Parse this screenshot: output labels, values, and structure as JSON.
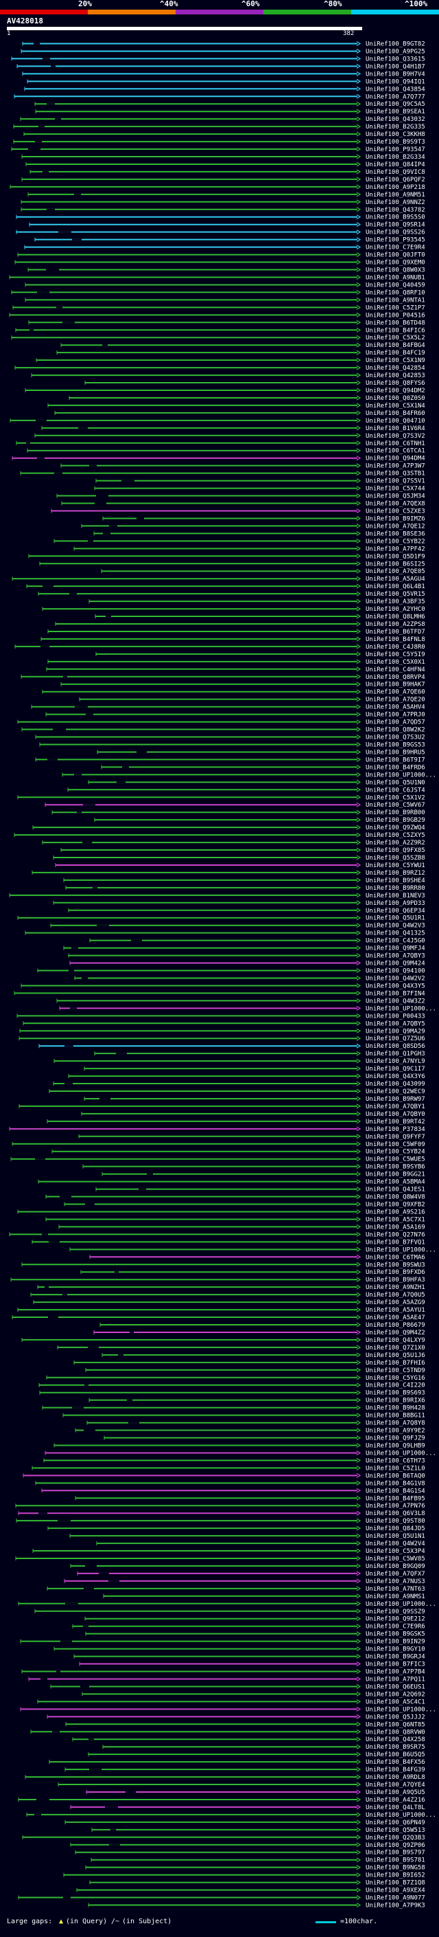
{
  "header": {
    "query_id": "AV428018",
    "query_range_start": "1",
    "query_range_end": "382",
    "scale_labels": [
      "20%",
      "^40%",
      "^60%",
      "^80%",
      "^100%"
    ],
    "scale_colors": [
      "#dd0000",
      "#ee7700",
      "#9922bb",
      "#22aa22",
      "#00ccee"
    ]
  },
  "colors": {
    "cyan": "#33ccee",
    "green": "#33bb33",
    "magenta": "#cc44cc",
    "gap": "#9999aa",
    "label": "#ffffff",
    "ruler": "#ffffff"
  },
  "hits": [
    {
      "label": "UniRef100_B9GT82",
      "c": "cyan"
    },
    {
      "label": "UniRef100_A9PG25",
      "c": "cyan"
    },
    {
      "label": "UniRef100_Q33615",
      "c": "cyan"
    },
    {
      "label": "UniRef100_Q4H1B7",
      "c": "cyan"
    },
    {
      "label": "UniRef100_B9H7V4",
      "c": "cyan"
    },
    {
      "label": "UniRef100_Q94IQ1",
      "c": "cyan"
    },
    {
      "label": "UniRef100_Q43854",
      "c": "cyan"
    },
    {
      "label": "UniRef100_A7Q777",
      "c": "cyan"
    },
    {
      "label": "UniRef100_Q9C5A5",
      "c": "green"
    },
    {
      "label": "UniRef100_B9SEA1",
      "c": "green"
    },
    {
      "label": "UniRef100_Q43032",
      "c": "green"
    },
    {
      "label": "UniRef100_B2G335",
      "c": "green"
    },
    {
      "label": "UniRef100_C3KKH8",
      "c": "green"
    },
    {
      "label": "UniRef100_B9S9T3",
      "c": "green"
    },
    {
      "label": "UniRef100_P93547",
      "c": "green"
    },
    {
      "label": "UniRef100_B2G334",
      "c": "green"
    },
    {
      "label": "UniRef100_Q84IP4",
      "c": "green"
    },
    {
      "label": "UniRef100_Q9VIC8",
      "c": "green"
    },
    {
      "label": "UniRef100_Q6PQF2",
      "c": "green"
    },
    {
      "label": "UniRef100_A9P218",
      "c": "green"
    },
    {
      "label": "UniRef100_A9NM51",
      "c": "green"
    },
    {
      "label": "UniRef100_A9NNZ2",
      "c": "green"
    },
    {
      "label": "UniRef100_Q43782",
      "c": "green"
    },
    {
      "label": "UniRef100_B9S5S0",
      "c": "cyan"
    },
    {
      "label": "UniRef100_Q9SR14",
      "c": "cyan"
    },
    {
      "label": "UniRef100_Q9SS26",
      "c": "cyan"
    },
    {
      "label": "UniRef100_P93545",
      "c": "cyan"
    },
    {
      "label": "UniRef100_C7E9R4",
      "c": "cyan"
    },
    {
      "label": "UniRef100_Q0JFT0",
      "c": "green"
    },
    {
      "label": "UniRef100_Q9XEM0",
      "c": "green"
    },
    {
      "label": "UniRef100_Q8W0X3",
      "c": "green"
    },
    {
      "label": "UniRef100_A9NUB1",
      "c": "green"
    },
    {
      "label": "UniRef100_Q40459",
      "c": "green"
    },
    {
      "label": "UniRef100_Q8RF10",
      "c": "green"
    },
    {
      "label": "UniRef100_A9NTA1",
      "c": "green"
    },
    {
      "label": "UniRef100_C5Z1P7",
      "c": "green"
    },
    {
      "label": "UniRef100_P04516",
      "c": "green"
    },
    {
      "label": "UniRef100_B6TD48",
      "c": "green"
    },
    {
      "label": "UniRef100_B4FIC6",
      "c": "green"
    },
    {
      "label": "UniRef100_C5X5L2",
      "c": "green"
    },
    {
      "label": "UniRef100_B4FBG4",
      "c": "green"
    },
    {
      "label": "UniRef100_B4FC19",
      "c": "green"
    },
    {
      "label": "UniRef100_C5X1N9",
      "c": "green"
    },
    {
      "label": "UniRef100_Q42854",
      "c": "green"
    },
    {
      "label": "UniRef100_Q42853",
      "c": "green"
    },
    {
      "label": "UniRef100_Q8FYS6",
      "c": "green"
    },
    {
      "label": "UniRef100_Q94DM2",
      "c": "green"
    },
    {
      "label": "UniRef100_Q0Z0S0",
      "c": "green"
    },
    {
      "label": "UniRef100_C5X1N4",
      "c": "green"
    },
    {
      "label": "UniRef100_B4FR60",
      "c": "green"
    },
    {
      "label": "UniRef100_Q04710",
      "c": "green"
    },
    {
      "label": "UniRef100_B1V6R4",
      "c": "green"
    },
    {
      "label": "UniRef100_Q7S3V2",
      "c": "green"
    },
    {
      "label": "UniRef100_C6TNH1",
      "c": "green"
    },
    {
      "label": "UniRef100_C6TCA1",
      "c": "green"
    },
    {
      "label": "UniRef100_Q94DM4",
      "c": "magenta"
    },
    {
      "label": "UniRef100_A7P3W7",
      "c": "green"
    },
    {
      "label": "UniRef100_Q3STB1",
      "c": "green"
    },
    {
      "label": "UniRef100_Q7S5V1",
      "c": "green"
    },
    {
      "label": "UniRef100_C5X744",
      "c": "green"
    },
    {
      "label": "UniRef100_Q5JM34",
      "c": "green"
    },
    {
      "label": "UniRef100_A7QEX8",
      "c": "green"
    },
    {
      "label": "UniRef100_C5ZXE3",
      "c": "magenta"
    },
    {
      "label": "UniRef100_B9IMZ6",
      "c": "green"
    },
    {
      "label": "UniRef100_A7QE12",
      "c": "green"
    },
    {
      "label": "UniRef100_B8SE36",
      "c": "green"
    },
    {
      "label": "UniRef100_C5YB22",
      "c": "green"
    },
    {
      "label": "UniRef100_A7PF42",
      "c": "green"
    },
    {
      "label": "UniRef100_Q5D1F9",
      "c": "green"
    },
    {
      "label": "UniRef100_B6SI25",
      "c": "green"
    },
    {
      "label": "UniRef100_A7QE05",
      "c": "green"
    },
    {
      "label": "UniRef100_A5AGU4",
      "c": "green"
    },
    {
      "label": "UniRef100_Q6L4B1",
      "c": "green"
    },
    {
      "label": "UniRef100_Q5VR15",
      "c": "green"
    },
    {
      "label": "UniRef100_A3BF35",
      "c": "green"
    },
    {
      "label": "UniRef100_A2YHC0",
      "c": "green"
    },
    {
      "label": "UniRef100_Q8LMH6",
      "c": "green"
    },
    {
      "label": "UniRef100_A2ZPS8",
      "c": "green"
    },
    {
      "label": "UniRef100_B6TFD7",
      "c": "green"
    },
    {
      "label": "UniRef100_B4FNL8",
      "c": "green"
    },
    {
      "label": "UniRef100_C4J8R0",
      "c": "green"
    },
    {
      "label": "UniRef100_C5Y5I9",
      "c": "green"
    },
    {
      "label": "UniRef100_C5X0X1",
      "c": "green"
    },
    {
      "label": "UniRef100_C4HFN4",
      "c": "green"
    },
    {
      "label": "UniRef100_Q8RVP4",
      "c": "green"
    },
    {
      "label": "UniRef100_B9HAK7",
      "c": "green"
    },
    {
      "label": "UniRef100_A7QE60",
      "c": "green"
    },
    {
      "label": "UniRef100_A7QE20",
      "c": "green"
    },
    {
      "label": "UniRef100_A5AHV4",
      "c": "green"
    },
    {
      "label": "UniRef100_A7PRJ0",
      "c": "green"
    },
    {
      "label": "UniRef100_A7QD57",
      "c": "green"
    },
    {
      "label": "UniRef100_Q8W2K2",
      "c": "green"
    },
    {
      "label": "UniRef100_Q7S3U2",
      "c": "green"
    },
    {
      "label": "UniRef100_B9GS53",
      "c": "green"
    },
    {
      "label": "UniRef100_B9HRU5",
      "c": "green"
    },
    {
      "label": "UniRef100_B6T9I7",
      "c": "green"
    },
    {
      "label": "UniRef100_B4FRD6",
      "c": "green"
    },
    {
      "label": "UniRef100_UP1000...",
      "c": "green"
    },
    {
      "label": "UniRef100_Q5U1N0",
      "c": "green"
    },
    {
      "label": "UniRef100_C6JST4",
      "c": "green"
    },
    {
      "label": "UniRef100_C5X1V2",
      "c": "green"
    },
    {
      "label": "UniRef100_C5WV67",
      "c": "magenta"
    },
    {
      "label": "UniRef100_B9RB00",
      "c": "green"
    },
    {
      "label": "UniRef100_B9GB29",
      "c": "green"
    },
    {
      "label": "UniRef100_Q9ZWQ4",
      "c": "green"
    },
    {
      "label": "UniRef100_C5ZXY5",
      "c": "green"
    },
    {
      "label": "UniRef100_A2Z9R2",
      "c": "green"
    },
    {
      "label": "UniRef100_Q9FX85",
      "c": "green"
    },
    {
      "label": "UniRef100_Q5SZB8",
      "c": "green"
    },
    {
      "label": "UniRef100_C5YWU1",
      "c": "magenta"
    },
    {
      "label": "UniRef100_B9RZ12",
      "c": "green"
    },
    {
      "label": "UniRef100_B9SHE4",
      "c": "green"
    },
    {
      "label": "UniRef100_B9RR80",
      "c": "green"
    },
    {
      "label": "UniRef100_B1NEV3",
      "c": "green"
    },
    {
      "label": "UniRef100_A9PD33",
      "c": "green"
    },
    {
      "label": "UniRef100_Q6EP34",
      "c": "green"
    },
    {
      "label": "UniRef100_Q5U1R1",
      "c": "green"
    },
    {
      "label": "UniRef100_Q4W2V3",
      "c": "green"
    },
    {
      "label": "UniRef100_Q41325",
      "c": "green"
    },
    {
      "label": "UniRef100_C4J5G0",
      "c": "green"
    },
    {
      "label": "UniRef100_Q9MFJ4",
      "c": "green"
    },
    {
      "label": "UniRef100_A7QBY3",
      "c": "green"
    },
    {
      "label": "UniRef100_Q9M424",
      "c": "magenta"
    },
    {
      "label": "UniRef100_Q94100",
      "c": "green"
    },
    {
      "label": "UniRef100_Q4W2V2",
      "c": "green"
    },
    {
      "label": "UniRef100_Q4X3Y5",
      "c": "green"
    },
    {
      "label": "UniRef100_B7FIN4",
      "c": "green"
    },
    {
      "label": "UniRef100_Q4W3Z2",
      "c": "green"
    },
    {
      "label": "UniRef100_UP1000...",
      "c": "magenta"
    },
    {
      "label": "UniRef100_P00433",
      "c": "green"
    },
    {
      "label": "UniRef100_A7QBY5",
      "c": "green"
    },
    {
      "label": "UniRef100_Q9MA29",
      "c": "green"
    },
    {
      "label": "UniRef100_Q7Z5U6",
      "c": "green"
    },
    {
      "label": "UniRef100_Q8SD56",
      "c": "cyan"
    },
    {
      "label": "UniRef100_Q1PGH3",
      "c": "green"
    },
    {
      "label": "UniRef100_A7NYL9",
      "c": "green"
    },
    {
      "label": "UniRef100_Q9C1I7",
      "c": "green"
    },
    {
      "label": "UniRef100_Q4X3Y6",
      "c": "green"
    },
    {
      "label": "UniRef100_Q43099",
      "c": "green"
    },
    {
      "label": "UniRef100_Q2WEC9",
      "c": "green"
    },
    {
      "label": "UniRef100_B9RW97",
      "c": "green"
    },
    {
      "label": "UniRef100_A7QBY1",
      "c": "green"
    },
    {
      "label": "UniRef100_A7QBY0",
      "c": "green"
    },
    {
      "label": "UniRef100_B9RT42",
      "c": "green"
    },
    {
      "label": "UniRef100_P37834",
      "c": "magenta"
    },
    {
      "label": "UniRef100_Q9FYF7",
      "c": "green"
    },
    {
      "label": "UniRef100_C5WF09",
      "c": "green"
    },
    {
      "label": "UniRef100_C5YB24",
      "c": "green"
    },
    {
      "label": "UniRef100_C5WUE5",
      "c": "green"
    },
    {
      "label": "UniRef100_B9SYB6",
      "c": "green"
    },
    {
      "label": "UniRef100_B9GG21",
      "c": "green"
    },
    {
      "label": "UniRef100_A5BMA4",
      "c": "green"
    },
    {
      "label": "UniRef100_Q4JES1",
      "c": "green"
    },
    {
      "label": "UniRef100_Q8W4V8",
      "c": "green"
    },
    {
      "label": "UniRef100_Q9XFB2",
      "c": "green"
    },
    {
      "label": "UniRef100_A9S216",
      "c": "green"
    },
    {
      "label": "UniRef100_A5C7X1",
      "c": "green"
    },
    {
      "label": "UniRef100_A5A169",
      "c": "green"
    },
    {
      "label": "UniRef100_Q27N76",
      "c": "green"
    },
    {
      "label": "UniRef100_B7FVQ1",
      "c": "green"
    },
    {
      "label": "UniRef100_UP1000...",
      "c": "green"
    },
    {
      "label": "UniRef100_C6TMA6",
      "c": "magenta"
    },
    {
      "label": "UniRef100_B9SWU3",
      "c": "green"
    },
    {
      "label": "UniRef100_B9FXD6",
      "c": "green"
    },
    {
      "label": "UniRef100_B9HFA3",
      "c": "green"
    },
    {
      "label": "UniRef100_A9NZH1",
      "c": "green"
    },
    {
      "label": "UniRef100_A7Q0U5",
      "c": "green"
    },
    {
      "label": "UniRef100_A5AZG9",
      "c": "green"
    },
    {
      "label": "UniRef100_A5AYU1",
      "c": "green"
    },
    {
      "label": "UniRef100_A5AE47",
      "c": "green"
    },
    {
      "label": "UniRef100_P86679",
      "c": "green"
    },
    {
      "label": "UniRef100_Q9M4Z2",
      "c": "magenta"
    },
    {
      "label": "UniRef100_Q4LXY9",
      "c": "green"
    },
    {
      "label": "UniRef100_Q7Z1X0",
      "c": "green"
    },
    {
      "label": "UniRef100_Q5U1J6",
      "c": "green"
    },
    {
      "label": "UniRef100_B7FHI6",
      "c": "green"
    },
    {
      "label": "UniRef100_C5TND9",
      "c": "green"
    },
    {
      "label": "UniRef100_C5YG16",
      "c": "green"
    },
    {
      "label": "UniRef100_C4I220",
      "c": "green"
    },
    {
      "label": "UniRef100_B9S693",
      "c": "green"
    },
    {
      "label": "UniRef100_B9RIX6",
      "c": "green"
    },
    {
      "label": "UniRef100_B9H428",
      "c": "green"
    },
    {
      "label": "UniRef100_B8BG11",
      "c": "green"
    },
    {
      "label": "UniRef100_A7Q8Y8",
      "c": "green"
    },
    {
      "label": "UniRef100_A9Y9E2",
      "c": "green"
    },
    {
      "label": "UniRef100_Q9FJZ9",
      "c": "green"
    },
    {
      "label": "UniRef100_Q9LHB9",
      "c": "green"
    },
    {
      "label": "UniRef100_UP1000...",
      "c": "magenta"
    },
    {
      "label": "UniRef100_C6TH73",
      "c": "green"
    },
    {
      "label": "UniRef100_C5Z1L0",
      "c": "green"
    },
    {
      "label": "UniRef100_B6TAQ0",
      "c": "magenta"
    },
    {
      "label": "UniRef100_B4G1V8",
      "c": "green"
    },
    {
      "label": "UniRef100_B4G1S4",
      "c": "magenta"
    },
    {
      "label": "UniRef100_B4FB95",
      "c": "green"
    },
    {
      "label": "UniRef100_A7PN76",
      "c": "green"
    },
    {
      "label": "UniRef100_Q6V3L8",
      "c": "magenta"
    },
    {
      "label": "UniRef100_Q9ST80",
      "c": "green"
    },
    {
      "label": "UniRef100_Q84JD5",
      "c": "green"
    },
    {
      "label": "UniRef100_Q5U1N1",
      "c": "green"
    },
    {
      "label": "UniRef100_Q4W2V4",
      "c": "green"
    },
    {
      "label": "UniRef100_C5X3P4",
      "c": "green"
    },
    {
      "label": "UniRef100_C5WV85",
      "c": "green"
    },
    {
      "label": "UniRef100_B9GQ09",
      "c": "green"
    },
    {
      "label": "UniRef100_A7QFX7",
      "c": "magenta"
    },
    {
      "label": "UniRef100_A7NUS3",
      "c": "magenta"
    },
    {
      "label": "UniRef100_A7NT63",
      "c": "green"
    },
    {
      "label": "UniRef100_A9NMS1",
      "c": "green"
    },
    {
      "label": "UniRef100_UP1000...",
      "c": "green"
    },
    {
      "label": "UniRef100_Q9SSZ9",
      "c": "green"
    },
    {
      "label": "UniRef100_Q9E212",
      "c": "green"
    },
    {
      "label": "UniRef100_C7E9R6",
      "c": "green"
    },
    {
      "label": "UniRef100_B9GSK5",
      "c": "green"
    },
    {
      "label": "UniRef100_B9IN29",
      "c": "green"
    },
    {
      "label": "UniRef100_B9GY10",
      "c": "green"
    },
    {
      "label": "UniRef100_B9GRJ4",
      "c": "green"
    },
    {
      "label": "UniRef100_B7FIC3",
      "c": "magenta"
    },
    {
      "label": "UniRef100_A7P7B4",
      "c": "green"
    },
    {
      "label": "UniRef100_A7PQ11",
      "c": "magenta"
    },
    {
      "label": "UniRef100_Q6EUS1",
      "c": "green"
    },
    {
      "label": "UniRef100_A2Q692",
      "c": "green"
    },
    {
      "label": "UniRef100_A5C4C1",
      "c": "green"
    },
    {
      "label": "UniRef100_UP1000...",
      "c": "magenta"
    },
    {
      "label": "UniRef100_Q5JJJ2",
      "c": "magenta"
    },
    {
      "label": "UniRef100_Q6NT85",
      "c": "green"
    },
    {
      "label": "UniRef100_Q8RVW0",
      "c": "green"
    },
    {
      "label": "UniRef100_Q4X258",
      "c": "green"
    },
    {
      "label": "UniRef100_B9SR75",
      "c": "green"
    },
    {
      "label": "UniRef100_B6U5Q5",
      "c": "green"
    },
    {
      "label": "UniRef100_B4FX56",
      "c": "green"
    },
    {
      "label": "UniRef100_B4FG39",
      "c": "green"
    },
    {
      "label": "UniRef100_A9RDL8",
      "c": "green"
    },
    {
      "label": "UniRef100_A7QYE4",
      "c": "green"
    },
    {
      "label": "UniRef100_A9Q5U5",
      "c": "magenta"
    },
    {
      "label": "UniRef100_A4Z216",
      "c": "green"
    },
    {
      "label": "UniRef100_Q4LT8L",
      "c": "magenta"
    },
    {
      "label": "UniRef100_UP1000...",
      "c": "green"
    },
    {
      "label": "UniRef100_Q6PN49",
      "c": "green"
    },
    {
      "label": "UniRef100_Q5W513",
      "c": "green"
    },
    {
      "label": "UniRef100_Q2Q3B3",
      "c": "green"
    },
    {
      "label": "UniRef100_Q9ZP06",
      "c": "green"
    },
    {
      "label": "UniRef100_B9S797",
      "c": "green"
    },
    {
      "label": "UniRef100_B9S781",
      "c": "green"
    },
    {
      "label": "UniRef100_B9NG58",
      "c": "green"
    },
    {
      "label": "UniRef100_B9I652",
      "c": "green"
    },
    {
      "label": "UniRef100_B7Z1Q8",
      "c": "green"
    },
    {
      "label": "UniRef100_A9XEX4",
      "c": "green"
    },
    {
      "label": "UniRef100_A9N077",
      "c": "green"
    },
    {
      "label": "UniRef100_A7P9K3",
      "c": "green"
    }
  ],
  "footer": {
    "large_gaps_label": "Large gaps:",
    "in_query_label": "(in Query)",
    "in_subject_label": "(in Subject)",
    "scale_label": "=100char."
  }
}
